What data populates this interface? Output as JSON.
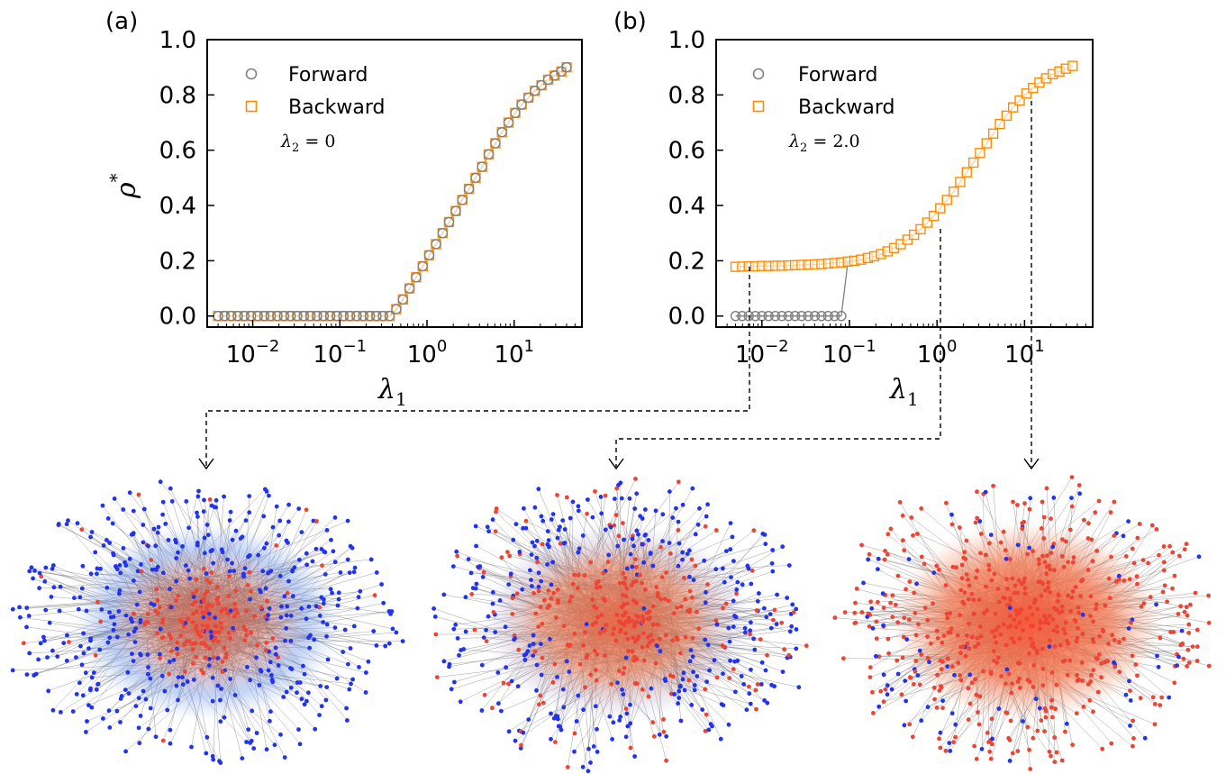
{
  "panels": [
    {
      "label": "(a)",
      "ylabel_sym": "ρ",
      "ylabel_sup": "*",
      "xlabel_sym": "λ",
      "xlabel_sub": "1",
      "annot_sym": "λ",
      "annot_sub": "2",
      "annot_rest": " = 0",
      "legend": [
        "Forward",
        "Backward"
      ],
      "yticks": [
        "0.0",
        "0.2",
        "0.4",
        "0.6",
        "0.8",
        "1.0"
      ],
      "xticks": [
        {
          "base": "10",
          "exp": "−2"
        },
        {
          "base": "10",
          "exp": "−1"
        },
        {
          "base": "10",
          "exp": "0"
        },
        {
          "base": "10",
          "exp": "1"
        }
      ]
    },
    {
      "label": "(b)",
      "ylabel_sym": "",
      "ylabel_sup": "",
      "xlabel_sym": "λ",
      "xlabel_sub": "1",
      "annot_sym": "λ",
      "annot_sub": "2",
      "annot_rest": " = 2.0",
      "legend": [
        "Forward",
        "Backward"
      ],
      "yticks": [
        "0.0",
        "0.2",
        "0.4",
        "0.6",
        "0.8",
        "1.0"
      ],
      "xticks": [
        {
          "base": "10",
          "exp": "−2"
        },
        {
          "base": "10",
          "exp": "−1"
        },
        {
          "base": "10",
          "exp": "0"
        },
        {
          "base": "10",
          "exp": "1"
        }
      ]
    }
  ],
  "colors": {
    "forward": "#808080",
    "backward": "#ff8c00",
    "infected": "#ee4433",
    "susceptible": "#2233ee",
    "edge": "#555555"
  },
  "chart_data": [
    {
      "type": "scatter",
      "title": "",
      "xlabel": "λ1",
      "ylabel": "ρ*",
      "xscale": "log",
      "xlim": [
        0.003,
        60
      ],
      "ylim": [
        -0.04,
        1.0
      ],
      "grid": false,
      "legend_position": "top-left",
      "series": [
        {
          "name": "Forward",
          "marker": "circle",
          "x": [
            0.004,
            0.00476,
            0.00567,
            0.00675,
            0.00804,
            0.00957,
            0.0114,
            0.0136,
            0.0161,
            0.0192,
            0.0229,
            0.0272,
            0.0324,
            0.0386,
            0.046,
            0.0547,
            0.0652,
            0.0776,
            0.0924,
            0.11,
            0.131,
            0.156,
            0.186,
            0.221,
            0.263,
            0.313,
            0.373,
            0.444,
            0.529,
            0.63,
            0.75,
            0.893,
            1.06,
            1.27,
            1.51,
            1.79,
            2.14,
            2.54,
            3.03,
            3.61,
            4.29,
            5.11,
            6.09,
            7.25,
            8.63,
            10.3,
            12.2,
            14.6,
            17.3,
            20.6,
            24.6,
            29.2,
            34.8,
            40.0
          ],
          "y": [
            0,
            0,
            0,
            0,
            0,
            0,
            0,
            0,
            0,
            0,
            0,
            0,
            0,
            0,
            0,
            0,
            0,
            0,
            0,
            0,
            0,
            0,
            0,
            0,
            0,
            0,
            0,
            0.025,
            0.06,
            0.1,
            0.14,
            0.18,
            0.22,
            0.26,
            0.3,
            0.34,
            0.38,
            0.42,
            0.46,
            0.5,
            0.54,
            0.585,
            0.625,
            0.665,
            0.7,
            0.735,
            0.765,
            0.79,
            0.815,
            0.835,
            0.855,
            0.87,
            0.885,
            0.9
          ]
        },
        {
          "name": "Backward",
          "marker": "square",
          "x": [
            0.004,
            0.00476,
            0.00567,
            0.00675,
            0.00804,
            0.00957,
            0.0114,
            0.0136,
            0.0161,
            0.0192,
            0.0229,
            0.0272,
            0.0324,
            0.0386,
            0.046,
            0.0547,
            0.0652,
            0.0776,
            0.0924,
            0.11,
            0.131,
            0.156,
            0.186,
            0.221,
            0.263,
            0.313,
            0.373,
            0.444,
            0.529,
            0.63,
            0.75,
            0.893,
            1.06,
            1.27,
            1.51,
            1.79,
            2.14,
            2.54,
            3.03,
            3.61,
            4.29,
            5.11,
            6.09,
            7.25,
            8.63,
            10.3,
            12.2,
            14.6,
            17.3,
            20.6,
            24.6,
            29.2,
            34.8,
            40.0
          ],
          "y": [
            0,
            0,
            0,
            0,
            0,
            0,
            0,
            0,
            0,
            0,
            0,
            0,
            0,
            0,
            0,
            0,
            0,
            0,
            0,
            0,
            0,
            0,
            0,
            0,
            0,
            0,
            0,
            0.025,
            0.06,
            0.1,
            0.14,
            0.18,
            0.22,
            0.26,
            0.3,
            0.34,
            0.38,
            0.42,
            0.46,
            0.5,
            0.54,
            0.585,
            0.625,
            0.665,
            0.7,
            0.735,
            0.765,
            0.79,
            0.815,
            0.835,
            0.855,
            0.87,
            0.885,
            0.9
          ]
        }
      ]
    },
    {
      "type": "scatter",
      "title": "",
      "xlabel": "λ1",
      "ylabel": "",
      "xscale": "log",
      "xlim": [
        0.003,
        60
      ],
      "ylim": [
        -0.04,
        1.0
      ],
      "grid": false,
      "legend_position": "top-left",
      "series": [
        {
          "name": "Forward",
          "marker": "circle",
          "x": [
            0.005,
            0.00595,
            0.00708,
            0.00843,
            0.01,
            0.0119,
            0.0142,
            0.0169,
            0.0201,
            0.0239,
            0.0284,
            0.0338,
            0.0402,
            0.0479,
            0.057,
            0.0678,
            0.0807
          ],
          "y": [
            0,
            0,
            0,
            0,
            0,
            0,
            0,
            0,
            0,
            0,
            0,
            0,
            0,
            0,
            0,
            0,
            0
          ]
        },
        {
          "name": "Backward",
          "marker": "square",
          "x": [
            0.005,
            0.00595,
            0.00708,
            0.00843,
            0.01,
            0.0119,
            0.0142,
            0.0169,
            0.0201,
            0.0239,
            0.0284,
            0.0338,
            0.0402,
            0.0479,
            0.057,
            0.0678,
            0.0807,
            0.096,
            0.114,
            0.136,
            0.162,
            0.192,
            0.229,
            0.272,
            0.324,
            0.386,
            0.459,
            0.546,
            0.65,
            0.773,
            0.92,
            1.09,
            1.3,
            1.55,
            1.84,
            2.19,
            2.61,
            3.1,
            3.69,
            4.39,
            5.23,
            6.22,
            7.4,
            8.81,
            10.5,
            12.5,
            14.8,
            17.6,
            21.0,
            25.0,
            29.7,
            35.4
          ],
          "y": [
            0.178,
            0.179,
            0.18,
            0.18,
            0.181,
            0.181,
            0.182,
            0.182,
            0.183,
            0.184,
            0.185,
            0.186,
            0.187,
            0.188,
            0.19,
            0.192,
            0.194,
            0.197,
            0.2,
            0.204,
            0.21,
            0.216,
            0.224,
            0.234,
            0.246,
            0.26,
            0.276,
            0.294,
            0.314,
            0.338,
            0.362,
            0.39,
            0.42,
            0.45,
            0.485,
            0.52,
            0.555,
            0.59,
            0.625,
            0.66,
            0.695,
            0.725,
            0.755,
            0.78,
            0.805,
            0.825,
            0.845,
            0.86,
            0.875,
            0.885,
            0.895,
            0.905
          ]
        }
      ]
    }
  ]
}
